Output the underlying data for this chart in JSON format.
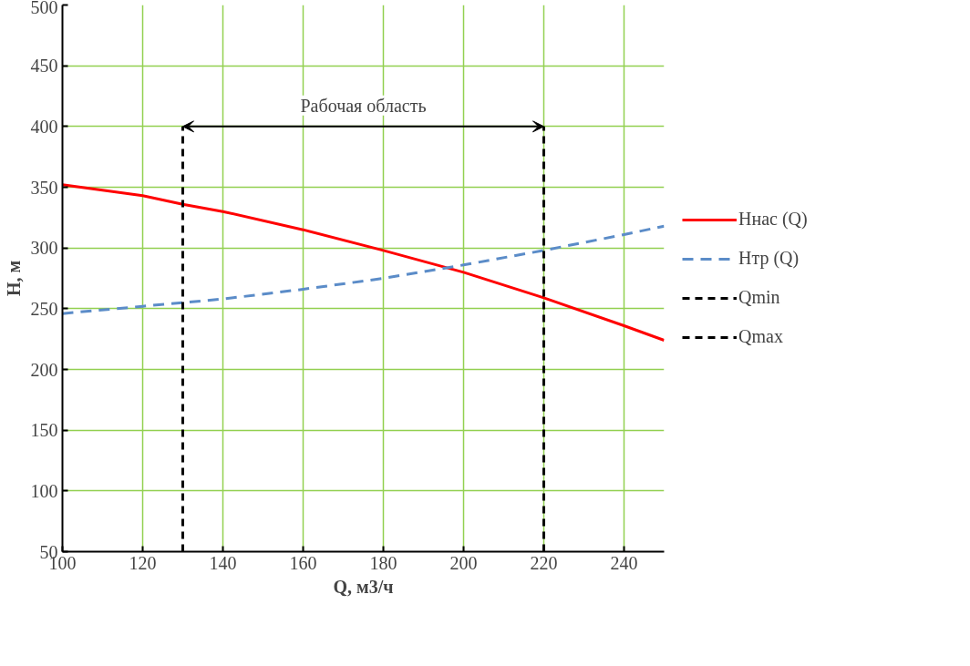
{
  "chart_data": {
    "type": "line",
    "xlabel": "Q, м3/ч",
    "ylabel": "H, м",
    "xlim": [
      100,
      250
    ],
    "ylim": [
      50,
      500
    ],
    "xticks": [
      100,
      120,
      140,
      160,
      180,
      200,
      220,
      240
    ],
    "yticks": [
      50,
      100,
      150,
      200,
      250,
      300,
      350,
      400,
      450,
      500
    ],
    "grid": true,
    "legend": "right",
    "marker": "none",
    "annotations": [
      "Рабочая область"
    ],
    "series": [
      {
        "name": "Hнас (Q)",
        "color": "#ff0000",
        "line_style": "solid",
        "x": [
          100,
          120,
          130,
          140,
          160,
          180,
          200,
          220,
          240,
          250
        ],
        "values": [
          352,
          343,
          336,
          330,
          315,
          298,
          280,
          259,
          236,
          224
        ]
      },
      {
        "name": "Hтр (Q)",
        "color": "#5b8cc8",
        "line_style": "dashed",
        "x": [
          100,
          120,
          130,
          140,
          160,
          180,
          200,
          220,
          240,
          250
        ],
        "values": [
          246,
          252,
          255,
          258,
          266,
          275,
          286,
          298,
          311,
          318
        ]
      },
      {
        "name": "Qmin",
        "color": "#000000",
        "line_style": "dashed",
        "x": [
          130,
          130
        ],
        "values": [
          50,
          400
        ]
      },
      {
        "name": "Qmax",
        "color": "#000000",
        "line_style": "dashed",
        "x": [
          220,
          220
        ],
        "values": [
          50,
          400
        ]
      }
    ]
  }
}
